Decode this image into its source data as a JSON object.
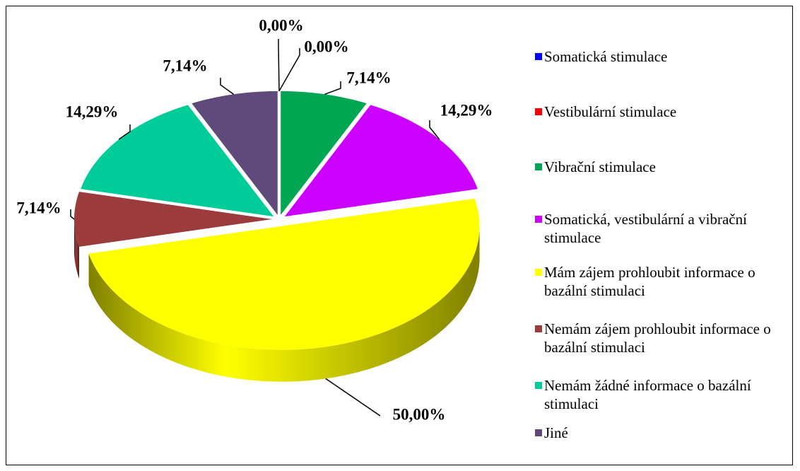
{
  "chart_data": {
    "type": "pie",
    "categories": [
      "Somatická stimulace",
      "Vestibulární stimulace",
      "Vibrační stimulace",
      "Somatická, vestibulární a vibrační stimulace",
      "Mám zájem prohloubit informace o bazální stimulaci",
      "Nemám zájem prohloubit informace o bazální stimulaci",
      "Nemám žádné informace o bazální stimulaci",
      "Jiné"
    ],
    "values": [
      0,
      0,
      7.14,
      14.29,
      50,
      7.14,
      14.29,
      7.14
    ],
    "value_labels": [
      "0,00%",
      "0,00%",
      "7,14%",
      "14,29%",
      "50,00%",
      "7,14%",
      "14,29%",
      "7,14%"
    ],
    "colors": [
      "#0000ff",
      "#ff0000",
      "#00a651",
      "#cc00ff",
      "#ffff00",
      "#9b3b3b",
      "#00cc99",
      "#604a7b"
    ],
    "legend": "right"
  }
}
